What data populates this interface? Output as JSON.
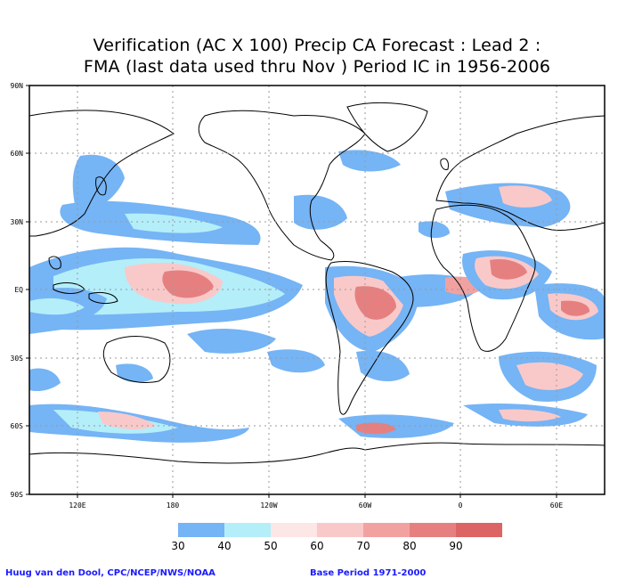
{
  "title_line1": "Verification (AC X 100) Precip CA Forecast : Lead 2 :",
  "title_line2": "FMA (last data used thru Nov ) Period IC in 1956-2006",
  "y_ticks": [
    "90N",
    "60N",
    "30N",
    "EQ",
    "30S",
    "60S",
    "90S"
  ],
  "x_ticks": [
    "120E",
    "180",
    "120W",
    "60W",
    "0",
    "60E"
  ],
  "legend": {
    "labels": [
      "30",
      "40",
      "50",
      "60",
      "70",
      "80",
      "90"
    ],
    "colors": [
      "#75b4f5",
      "#b4eef9",
      "#fde6e6",
      "#f9c9c9",
      "#f2a1a1",
      "#e68080",
      "#dc6464"
    ]
  },
  "footer_left": "Huug van den Dool, CPC/NCEP/NWS/NOAA",
  "footer_right": "Base Period 1971-2000"
}
